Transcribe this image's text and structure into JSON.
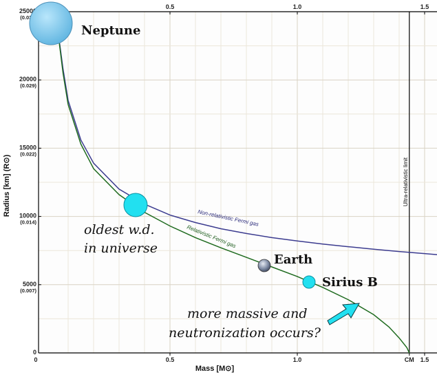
{
  "chart_data": {
    "type": "line",
    "xlabel": "Mass [M⊙]",
    "ylabel": "Radius [km] (R⊙)",
    "xlim": [
      0,
      1.55
    ],
    "ylim": [
      0,
      25000
    ],
    "grid": true,
    "x_ticks": [
      {
        "value": 0,
        "label": "0"
      },
      {
        "value": 0.5,
        "label": "0.5"
      },
      {
        "value": 1.0,
        "label": "1.0"
      },
      {
        "value": 1.44,
        "label": "CM"
      },
      {
        "value": 1.5,
        "label": "1.5"
      }
    ],
    "x_ticks_top": [
      {
        "value": 0.5,
        "label": "0.5"
      },
      {
        "value": 1.0,
        "label": "1.0"
      },
      {
        "value": 1.5,
        "label": "1.5"
      }
    ],
    "y_ticks": [
      {
        "value": 5000,
        "label": "5000",
        "sub": "(0.007)"
      },
      {
        "value": 10000,
        "label": "10000",
        "sub": "(0.014)"
      },
      {
        "value": 15000,
        "label": "15000",
        "sub": "(0.022)"
      },
      {
        "value": 20000,
        "label": "20000",
        "sub": "(0.029)"
      },
      {
        "value": 25000,
        "label": "25000",
        "sub": "(0.036)"
      }
    ],
    "series": [
      {
        "name": "Non-relativistic Fermi gas",
        "color": "#3b3b8f",
        "points": [
          [
            0.05,
            25000
          ],
          [
            0.08,
            20800
          ],
          [
            0.1,
            18500
          ],
          [
            0.15,
            15600
          ],
          [
            0.2,
            13900
          ],
          [
            0.3,
            12000
          ],
          [
            0.4,
            10900
          ],
          [
            0.5,
            10100
          ],
          [
            0.6,
            9550
          ],
          [
            0.7,
            9100
          ],
          [
            0.8,
            8750
          ],
          [
            0.9,
            8450
          ],
          [
            1.0,
            8200
          ],
          [
            1.1,
            7980
          ],
          [
            1.2,
            7780
          ],
          [
            1.3,
            7600
          ],
          [
            1.4,
            7430
          ],
          [
            1.5,
            7280
          ],
          [
            1.55,
            7200
          ]
        ]
      },
      {
        "name": "Relativistic Fermi gas",
        "color": "#1f6b1f",
        "points": [
          [
            0.05,
            25000
          ],
          [
            0.08,
            20500
          ],
          [
            0.1,
            18200
          ],
          [
            0.15,
            15300
          ],
          [
            0.2,
            13500
          ],
          [
            0.3,
            11600
          ],
          [
            0.4,
            10300
          ],
          [
            0.5,
            9300
          ],
          [
            0.6,
            8450
          ],
          [
            0.7,
            7700
          ],
          [
            0.8,
            7000
          ],
          [
            0.9,
            6300
          ],
          [
            1.0,
            5600
          ],
          [
            1.1,
            4800
          ],
          [
            1.2,
            3900
          ],
          [
            1.3,
            2800
          ],
          [
            1.36,
            1900
          ],
          [
            1.4,
            1100
          ],
          [
            1.43,
            400
          ],
          [
            1.44,
            0
          ]
        ]
      }
    ],
    "limit_line": {
      "x": 1.44,
      "label": "Ultra-relativistic limit"
    },
    "points": [
      {
        "name": "Neptune",
        "x": 0.05,
        "y": 25000,
        "color": "#7ec8ec"
      },
      {
        "name": "oldest w.d. in universe",
        "x": 0.37,
        "y": 11000,
        "color": "#22e0f0"
      },
      {
        "name": "Earth",
        "x": 0.87,
        "y": 6600,
        "color": "#6f7a8f"
      },
      {
        "name": "Sirius B",
        "x": 1.04,
        "y": 5400,
        "color": "#22e0f0"
      }
    ]
  },
  "labels": {
    "neptune": "Neptune",
    "earth": "Earth",
    "sirius": "Sirius B",
    "oldest_line1": "oldest w.d.",
    "oldest_line2": "in universe",
    "massive_line1": "more massive and",
    "massive_line2": "neutronization occurs?",
    "nonrel": "Non-relativistic Fermi gas",
    "rel": "Relativistic Fermi gas",
    "limit": "Ultra-relativistic limit"
  }
}
